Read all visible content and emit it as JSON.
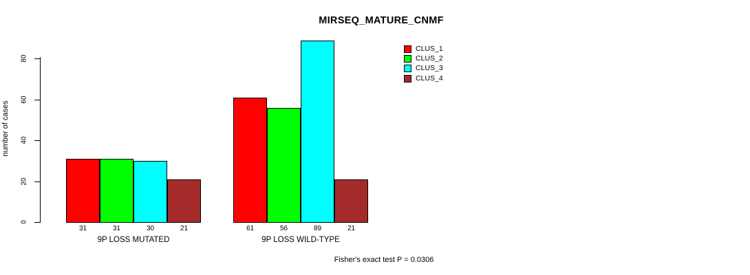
{
  "title": "MIRSEQ_MATURE_CNMF",
  "footer": "Fisher's exact test P = 0.0306",
  "colors": {
    "background": "#ffffff",
    "axis": "#000000",
    "bar_border": "#000000",
    "clus_1": "#ff0000",
    "clus_2": "#00ff00",
    "clus_3": "#00ffff",
    "clus_4": "#a52a2a"
  },
  "chart_data": {
    "type": "bar",
    "title": "MIRSEQ_MATURE_CNMF",
    "xlabel": "",
    "ylabel": "number of cases",
    "ylim": [
      0,
      89
    ],
    "yticks": [
      0,
      20,
      40,
      60,
      80
    ],
    "grid": false,
    "legend_position": "top-right",
    "categories": [
      "9P LOSS MUTATED",
      "9P LOSS WILD-TYPE"
    ],
    "series": [
      {
        "name": "CLUS_1",
        "color": "#ff0000",
        "values": [
          31,
          61
        ]
      },
      {
        "name": "CLUS_2",
        "color": "#00ff00",
        "values": [
          31,
          56
        ]
      },
      {
        "name": "CLUS_3",
        "color": "#00ffff",
        "values": [
          30,
          89
        ]
      },
      {
        "name": "CLUS_4",
        "color": "#a52a2a",
        "values": [
          21,
          21
        ]
      }
    ],
    "bar_value_labels": [
      [
        31,
        31,
        30,
        21
      ],
      [
        61,
        56,
        89,
        21
      ]
    ],
    "annotation": "Fisher's exact test P = 0.0306"
  }
}
